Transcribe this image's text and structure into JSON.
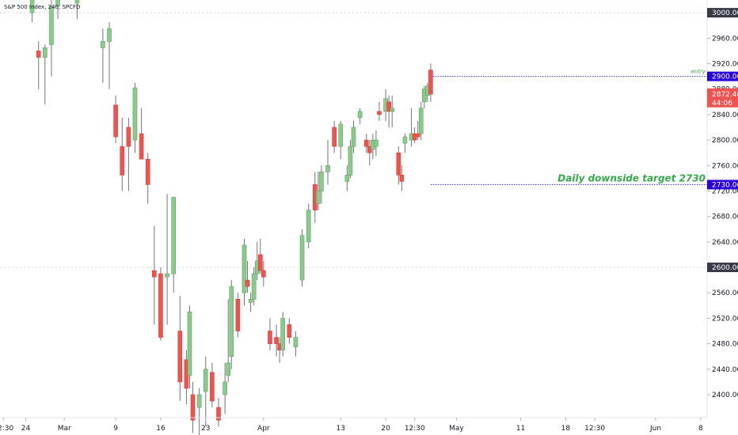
{
  "header": {
    "symbol_title": "S&P 500 Index, 240, SPCFD"
  },
  "colors": {
    "up_body": "#8bc98d",
    "up_border": "#5ba360",
    "down_body": "#ef5350",
    "down_border": "#d23f3c",
    "wick": "#737375",
    "grid": "#d1d4dc",
    "level_line": "#2b2bcc",
    "level_label_bg": "#2a00d8",
    "annotation_text": "#37a84a",
    "dark_label_bg": "#363a45",
    "price_label_bg": "#ef5350"
  },
  "chart_data": {
    "type": "candlestick",
    "y_axis": {
      "range": [
        2364,
        3020
      ],
      "ticks": [
        2400,
        2440,
        2480,
        2520,
        2560,
        2600,
        2640,
        2680,
        2720,
        2760,
        2800,
        2840,
        2880,
        2920,
        2960,
        3000
      ],
      "tick_labels": [
        "2400.00",
        "2440.00",
        "2480.00",
        "2520.00",
        "2560.00",
        "2600.00",
        "2640.00",
        "2680.00",
        "2720.00",
        "2760.00",
        "2800.00",
        "2840.00",
        "2880.00",
        "2920.00",
        "2960.00",
        "3000.00"
      ]
    },
    "x_axis": {
      "range": [
        "2020-02-20",
        "2020-06-09"
      ],
      "ticks": [
        {
          "date": "2020-02-20 12:30",
          "label": "12:30"
        },
        {
          "date": "2020-02-24",
          "label": "24"
        },
        {
          "date": "2020-03-01",
          "label": "Mar"
        },
        {
          "date": "2020-03-09",
          "label": "9"
        },
        {
          "date": "2020-03-16",
          "label": "16"
        },
        {
          "date": "2020-03-23",
          "label": "23"
        },
        {
          "date": "2020-04-01",
          "label": "Apr"
        },
        {
          "date": "2020-04-13",
          "label": "13"
        },
        {
          "date": "2020-04-20",
          "label": "20"
        },
        {
          "date": "2020-04-24 12:30",
          "label": "12:30"
        },
        {
          "date": "2020-05-01",
          "label": "May"
        },
        {
          "date": "2020-05-11",
          "label": "11"
        },
        {
          "date": "2020-05-18",
          "label": "18"
        },
        {
          "date": "2020-05-22 12:30",
          "label": "12:30"
        },
        {
          "date": "2020-06-01",
          "label": "Jun"
        },
        {
          "date": "2020-06-08",
          "label": "8"
        }
      ]
    },
    "grid": {
      "horizontal_dotted_at": [
        3000,
        2600
      ]
    },
    "candles": [
      {
        "x": "2020-02-25",
        "o": 3000,
        "h": 3045,
        "l": 2985,
        "c": 3040
      },
      {
        "x": "2020-02-26",
        "o": 2940,
        "h": 2955,
        "l": 2880,
        "c": 2930
      },
      {
        "x": "2020-02-27",
        "o": 2930,
        "h": 2950,
        "l": 2856,
        "c": 2945
      },
      {
        "x": "2020-02-28",
        "o": 2950,
        "h": 3020,
        "l": 2900,
        "c": 3010
      },
      {
        "x": "2020-02-29",
        "o": 3010,
        "h": 3045,
        "l": 2990,
        "c": 3035
      },
      {
        "x": "2020-03-01",
        "o": 3035,
        "h": 3045,
        "l": 3025,
        "c": 3040
      },
      {
        "x": "2020-03-03",
        "o": 3015,
        "h": 3040,
        "l": 2990,
        "c": 3040
      },
      {
        "x": "2020-03-06",
        "o": 3030,
        "h": 3045,
        "l": 3020,
        "c": 3040
      },
      {
        "x": "2020-03-07",
        "o": 2945,
        "h": 2975,
        "l": 2890,
        "c": 2955
      },
      {
        "x": "2020-03-08",
        "o": 2955,
        "h": 2985,
        "l": 2880,
        "c": 2975
      },
      {
        "x": "2020-03-09",
        "o": 2855,
        "h": 2870,
        "l": 2795,
        "c": 2805
      },
      {
        "x": "2020-03-10",
        "o": 2790,
        "h": 2835,
        "l": 2720,
        "c": 2745
      },
      {
        "x": "2020-03-11",
        "o": 2820,
        "h": 2835,
        "l": 2720,
        "c": 2790
      },
      {
        "x": "2020-03-12",
        "o": 2800,
        "h": 2890,
        "l": 2780,
        "c": 2882
      },
      {
        "x": "2020-03-13",
        "o": 2810,
        "h": 2850,
        "l": 2770,
        "c": 2770
      },
      {
        "x": "2020-03-14",
        "o": 2770,
        "h": 2780,
        "l": 2700,
        "c": 2730
      },
      {
        "x": "2020-03-15",
        "o": 2595,
        "h": 2665,
        "l": 2510,
        "c": 2585
      },
      {
        "x": "2020-03-16",
        "o": 2590,
        "h": 2600,
        "l": 2485,
        "c": 2490
      },
      {
        "x": "2020-03-17",
        "o": 2585,
        "h": 2715,
        "l": 2510,
        "c": 2590
      },
      {
        "x": "2020-03-18",
        "o": 2590,
        "h": 2710,
        "l": 2560,
        "c": 2710
      },
      {
        "x": "2020-03-19",
        "o": 2500,
        "h": 2555,
        "l": 2390,
        "c": 2420
      },
      {
        "x": "2020-03-20",
        "o": 2455,
        "h": 2470,
        "l": 2385,
        "c": 2410
      },
      {
        "x": "2020-03-20 12:00",
        "o": 2430,
        "h": 2540,
        "l": 2410,
        "c": 2530
      },
      {
        "x": "2020-03-21",
        "o": 2400,
        "h": 2420,
        "l": 2340,
        "c": 2360
      },
      {
        "x": "2020-03-22",
        "o": 2380,
        "h": 2410,
        "l": 2330,
        "c": 2400
      },
      {
        "x": "2020-03-23",
        "o": 2405,
        "h": 2460,
        "l": 2350,
        "c": 2440
      },
      {
        "x": "2020-03-24",
        "o": 2435,
        "h": 2450,
        "l": 2380,
        "c": 2390
      },
      {
        "x": "2020-03-25",
        "o": 2380,
        "h": 2395,
        "l": 2350,
        "c": 2360
      },
      {
        "x": "2020-03-26",
        "o": 2400,
        "h": 2450,
        "l": 2370,
        "c": 2420
      },
      {
        "x": "2020-03-26 12:00",
        "o": 2430,
        "h": 2550,
        "l": 2420,
        "c": 2450
      },
      {
        "x": "2020-03-27",
        "o": 2460,
        "h": 2580,
        "l": 2440,
        "c": 2570
      },
      {
        "x": "2020-03-28",
        "o": 2550,
        "h": 2560,
        "l": 2490,
        "c": 2500
      },
      {
        "x": "2020-03-29",
        "o": 2560,
        "h": 2645,
        "l": 2540,
        "c": 2635
      },
      {
        "x": "2020-03-29 12:00",
        "o": 2580,
        "h": 2610,
        "l": 2560,
        "c": 2570
      },
      {
        "x": "2020-03-30",
        "o": 2545,
        "h": 2560,
        "l": 2530,
        "c": 2550
      },
      {
        "x": "2020-03-30 12:00",
        "o": 2550,
        "h": 2600,
        "l": 2540,
        "c": 2590
      },
      {
        "x": "2020-03-31",
        "o": 2590,
        "h": 2640,
        "l": 2580,
        "c": 2610
      },
      {
        "x": "2020-03-31 12:00",
        "o": 2620,
        "h": 2645,
        "l": 2590,
        "c": 2595
      },
      {
        "x": "2020-04-01",
        "o": 2595,
        "h": 2610,
        "l": 2570,
        "c": 2585
      },
      {
        "x": "2020-04-02",
        "o": 2500,
        "h": 2520,
        "l": 2470,
        "c": 2480
      },
      {
        "x": "2020-04-03",
        "o": 2490,
        "h": 2510,
        "l": 2460,
        "c": 2480
      },
      {
        "x": "2020-04-03 12:00",
        "o": 2480,
        "h": 2490,
        "l": 2450,
        "c": 2470
      },
      {
        "x": "2020-04-04",
        "o": 2470,
        "h": 2530,
        "l": 2460,
        "c": 2520
      },
      {
        "x": "2020-04-05",
        "o": 2510,
        "h": 2520,
        "l": 2480,
        "c": 2490
      },
      {
        "x": "2020-04-06",
        "o": 2475,
        "h": 2500,
        "l": 2460,
        "c": 2490
      },
      {
        "x": "2020-04-07",
        "o": 2580,
        "h": 2660,
        "l": 2570,
        "c": 2650
      },
      {
        "x": "2020-04-08",
        "o": 2640,
        "h": 2700,
        "l": 2630,
        "c": 2690
      },
      {
        "x": "2020-04-09",
        "o": 2730,
        "h": 2750,
        "l": 2670,
        "c": 2690
      },
      {
        "x": "2020-04-09 12:00",
        "o": 2700,
        "h": 2750,
        "l": 2690,
        "c": 2720
      },
      {
        "x": "2020-04-10",
        "o": 2720,
        "h": 2760,
        "l": 2700,
        "c": 2750
      },
      {
        "x": "2020-04-11",
        "o": 2750,
        "h": 2800,
        "l": 2730,
        "c": 2760
      },
      {
        "x": "2020-04-12",
        "o": 2820,
        "h": 2830,
        "l": 2780,
        "c": 2790
      },
      {
        "x": "2020-04-13",
        "o": 2790,
        "h": 2830,
        "l": 2770,
        "c": 2825
      },
      {
        "x": "2020-04-14",
        "o": 2735,
        "h": 2760,
        "l": 2720,
        "c": 2745
      },
      {
        "x": "2020-04-14 12:00",
        "o": 2745,
        "h": 2800,
        "l": 2740,
        "c": 2790
      },
      {
        "x": "2020-04-15",
        "o": 2790,
        "h": 2830,
        "l": 2780,
        "c": 2820
      },
      {
        "x": "2020-04-16",
        "o": 2835,
        "h": 2850,
        "l": 2825,
        "c": 2845
      },
      {
        "x": "2020-04-17",
        "o": 2800,
        "h": 2810,
        "l": 2780,
        "c": 2790
      },
      {
        "x": "2020-04-17 12:00",
        "o": 2790,
        "h": 2800,
        "l": 2760,
        "c": 2780
      },
      {
        "x": "2020-04-18",
        "o": 2785,
        "h": 2810,
        "l": 2770,
        "c": 2800
      },
      {
        "x": "2020-04-18 12:00",
        "o": 2790,
        "h": 2815,
        "l": 2775,
        "c": 2800
      },
      {
        "x": "2020-04-19",
        "o": 2845,
        "h": 2860,
        "l": 2830,
        "c": 2840
      },
      {
        "x": "2020-04-20",
        "o": 2845,
        "h": 2880,
        "l": 2830,
        "c": 2865
      },
      {
        "x": "2020-04-20 12:00",
        "o": 2860,
        "h": 2870,
        "l": 2820,
        "c": 2845
      },
      {
        "x": "2020-04-21",
        "o": 2845,
        "h": 2870,
        "l": 2820,
        "c": 2850
      },
      {
        "x": "2020-04-22",
        "o": 2780,
        "h": 2790,
        "l": 2730,
        "c": 2745
      },
      {
        "x": "2020-04-22 12:00",
        "o": 2745,
        "h": 2760,
        "l": 2720,
        "c": 2735
      },
      {
        "x": "2020-04-23",
        "o": 2795,
        "h": 2810,
        "l": 2780,
        "c": 2805
      },
      {
        "x": "2020-04-24",
        "o": 2800,
        "h": 2850,
        "l": 2790,
        "c": 2810
      },
      {
        "x": "2020-04-24 12:00",
        "o": 2810,
        "h": 2820,
        "l": 2795,
        "c": 2800
      },
      {
        "x": "2020-04-25",
        "o": 2810,
        "h": 2830,
        "l": 2800,
        "c": 2805
      },
      {
        "x": "2020-04-25 12:00",
        "o": 2810,
        "h": 2860,
        "l": 2800,
        "c": 2850
      },
      {
        "x": "2020-04-26",
        "o": 2860,
        "h": 2885,
        "l": 2850,
        "c": 2880
      },
      {
        "x": "2020-04-26 12:00",
        "o": 2870,
        "h": 2890,
        "l": 2860,
        "c": 2885
      },
      {
        "x": "2020-04-27",
        "o": 2910,
        "h": 2920,
        "l": 2860,
        "c": 2872
      }
    ],
    "levels": [
      {
        "name": "entry",
        "value": 2900,
        "label": "2900.00",
        "note": "entry",
        "x_start": "2020-04-27"
      },
      {
        "name": "downside-target",
        "value": 2730,
        "label": "2730.00",
        "note": "Daily downside target 2730",
        "x_start": "2020-04-27"
      }
    ],
    "last_price": {
      "value": 2872.46,
      "label": "2872.46",
      "countdown": "44:06"
    }
  }
}
